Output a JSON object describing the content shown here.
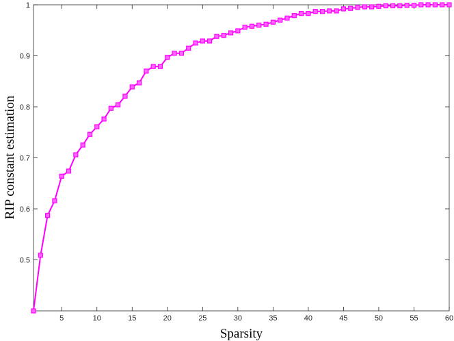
{
  "chart_data": {
    "type": "line",
    "x_label": "Sparsity",
    "y_label": "RIP constant estimation",
    "x": [
      1,
      2,
      3,
      4,
      5,
      6,
      7,
      8,
      9,
      10,
      11,
      12,
      13,
      14,
      15,
      16,
      17,
      18,
      19,
      20,
      21,
      22,
      23,
      24,
      25,
      26,
      27,
      28,
      29,
      30,
      31,
      32,
      33,
      34,
      35,
      36,
      37,
      38,
      39,
      40,
      41,
      42,
      43,
      44,
      45,
      46,
      47,
      48,
      49,
      50,
      51,
      52,
      53,
      54,
      55,
      56,
      57,
      58,
      59,
      60
    ],
    "series": [
      {
        "color": "#ff00ff",
        "marker": "square",
        "values": [
          0.4,
          0.509,
          0.587,
          0.616,
          0.664,
          0.674,
          0.706,
          0.725,
          0.746,
          0.761,
          0.776,
          0.797,
          0.804,
          0.821,
          0.839,
          0.847,
          0.87,
          0.879,
          0.879,
          0.897,
          0.905,
          0.905,
          0.915,
          0.925,
          0.929,
          0.929,
          0.938,
          0.94,
          0.945,
          0.949,
          0.956,
          0.958,
          0.96,
          0.962,
          0.966,
          0.97,
          0.974,
          0.979,
          0.983,
          0.983,
          0.987,
          0.987,
          0.988,
          0.988,
          0.992,
          0.993,
          0.995,
          0.996,
          0.996,
          0.997,
          0.998,
          0.998,
          0.998,
          0.999,
          0.999,
          1,
          1,
          1,
          1,
          1
        ]
      }
    ],
    "xlim": [
      1,
      60
    ],
    "xticks": [
      5,
      10,
      15,
      20,
      25,
      30,
      35,
      40,
      45,
      50,
      55,
      60
    ],
    "ylim": [
      0.4,
      1
    ],
    "yticks": [
      0.5,
      0.6,
      0.7,
      0.8,
      0.9,
      1
    ],
    "grid": false
  }
}
